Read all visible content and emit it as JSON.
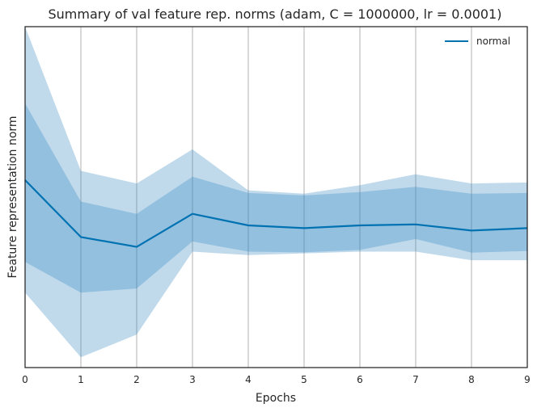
{
  "chart_data": {
    "type": "line",
    "title": "Summary of val feature rep. norms (adam, C = 1000000, lr = 0.0001)",
    "xlabel": "Epochs",
    "ylabel": "Feature representation norm",
    "xlim": [
      0,
      9
    ],
    "ylim": [
      0,
      1
    ],
    "x_ticks": [
      "0",
      "1",
      "2",
      "3",
      "4",
      "5",
      "6",
      "7",
      "8",
      "9"
    ],
    "y_ticks": [],
    "grid": "vertical",
    "legend_position": "top-right",
    "x": [
      0,
      1,
      2,
      3,
      4,
      5,
      6,
      7,
      8,
      9
    ],
    "series": [
      {
        "name": "normal",
        "color": "#0072b2",
        "values": [
          0.55,
          0.383,
          0.354,
          0.451,
          0.417,
          0.409,
          0.417,
          0.42,
          0.402,
          0.409
        ],
        "inner_band": {
          "upper": [
            0.775,
            0.487,
            0.451,
            0.56,
            0.512,
            0.505,
            0.515,
            0.53,
            0.51,
            0.512
          ],
          "lower": [
            0.31,
            0.22,
            0.232,
            0.37,
            0.34,
            0.338,
            0.345,
            0.377,
            0.337,
            0.342
          ]
        },
        "outer_band": {
          "upper": [
            1.0,
            0.577,
            0.54,
            0.64,
            0.52,
            0.51,
            0.535,
            0.567,
            0.54,
            0.543
          ],
          "lower": [
            0.22,
            0.03,
            0.097,
            0.34,
            0.33,
            0.335,
            0.34,
            0.34,
            0.315,
            0.315
          ]
        }
      }
    ]
  }
}
